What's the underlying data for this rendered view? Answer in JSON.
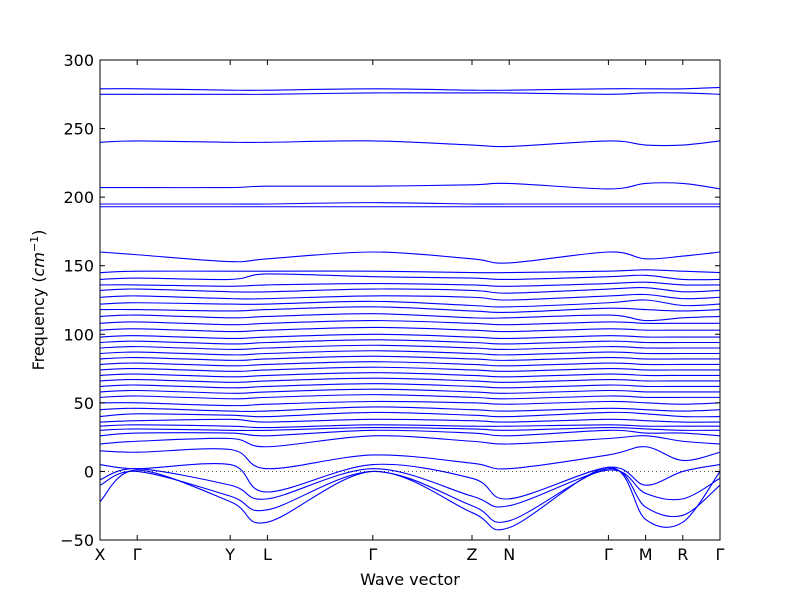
{
  "chart_data": {
    "type": "line",
    "title": "",
    "xlabel": "Wave vector",
    "ylabel": "Frequency ($cm^{-1}$)",
    "ylim": [
      -50,
      300
    ],
    "yticks": [
      -50,
      0,
      50,
      100,
      150,
      200,
      250,
      300
    ],
    "grid": false,
    "legend": "none",
    "line_color": "#0000ff",
    "zero_reference_line": {
      "y": 0,
      "style": "dotted"
    },
    "x": [
      0,
      0.06,
      0.21,
      0.27,
      0.44,
      0.6,
      0.66,
      0.82,
      0.88,
      0.94,
      1.0
    ],
    "x_tick_labels": [
      "X",
      "Γ",
      "Y",
      "L",
      "Γ",
      "Z",
      "N",
      "Γ",
      "M",
      "R",
      "Γ"
    ],
    "series": [
      {
        "values": [
          -22,
          1,
          -22,
          -37,
          0,
          -30,
          -41,
          3,
          -35,
          -37,
          0
        ]
      },
      {
        "values": [
          -10,
          0,
          -18,
          -28,
          0,
          -25,
          -36,
          2,
          -26,
          -32,
          -10
        ]
      },
      {
        "values": [
          -6,
          2,
          -10,
          -20,
          2,
          -18,
          -25,
          1,
          -16,
          -20,
          -5
        ]
      },
      {
        "values": [
          5,
          2,
          5,
          -15,
          5,
          -5,
          -20,
          3,
          -10,
          0,
          5
        ]
      },
      {
        "values": [
          15,
          14,
          16,
          2,
          12,
          6,
          2,
          12,
          18,
          8,
          14
        ]
      },
      {
        "values": [
          20,
          22,
          24,
          18,
          26,
          22,
          20,
          24,
          26,
          22,
          20
        ]
      },
      {
        "values": [
          26,
          28,
          28,
          26,
          30,
          28,
          26,
          30,
          28,
          28,
          26
        ]
      },
      {
        "values": [
          30,
          31,
          30,
          30,
          32,
          31,
          30,
          32,
          31,
          30,
          30
        ]
      },
      {
        "values": [
          33,
          34,
          33,
          32,
          34,
          33,
          33,
          34,
          33,
          33,
          33
        ]
      },
      {
        "values": [
          36,
          37,
          38,
          36,
          38,
          37,
          36,
          38,
          37,
          36,
          36
        ]
      },
      {
        "values": [
          40,
          42,
          41,
          40,
          43,
          41,
          40,
          43,
          42,
          40,
          40
        ]
      },
      {
        "values": [
          45,
          46,
          44,
          44,
          47,
          45,
          44,
          46,
          45,
          44,
          45
        ]
      },
      {
        "values": [
          50,
          50,
          48,
          49,
          51,
          50,
          49,
          51,
          50,
          49,
          50
        ]
      },
      {
        "values": [
          54,
          55,
          53,
          54,
          56,
          54,
          53,
          55,
          54,
          54,
          54
        ]
      },
      {
        "values": [
          58,
          59,
          57,
          58,
          60,
          58,
          57,
          59,
          58,
          58,
          58
        ]
      },
      {
        "values": [
          62,
          63,
          61,
          62,
          64,
          62,
          61,
          63,
          62,
          62,
          62
        ]
      },
      {
        "values": [
          66,
          67,
          65,
          66,
          68,
          66,
          65,
          67,
          66,
          66,
          66
        ]
      },
      {
        "values": [
          70,
          71,
          69,
          70,
          72,
          70,
          69,
          71,
          70,
          70,
          70
        ]
      },
      {
        "values": [
          74,
          75,
          73,
          74,
          76,
          74,
          73,
          75,
          74,
          74,
          74
        ]
      },
      {
        "values": [
          78,
          79,
          77,
          78,
          80,
          78,
          77,
          79,
          78,
          78,
          78
        ]
      },
      {
        "values": [
          82,
          83,
          81,
          82,
          84,
          82,
          81,
          83,
          82,
          82,
          82
        ]
      },
      {
        "values": [
          86,
          87,
          85,
          86,
          88,
          86,
          85,
          87,
          86,
          86,
          86
        ]
      },
      {
        "values": [
          90,
          91,
          89,
          90,
          92,
          90,
          89,
          91,
          90,
          90,
          90
        ]
      },
      {
        "values": [
          94,
          95,
          93,
          94,
          96,
          94,
          93,
          95,
          94,
          94,
          94
        ]
      },
      {
        "values": [
          98,
          99,
          97,
          98,
          100,
          98,
          97,
          99,
          98,
          98,
          98
        ]
      },
      {
        "values": [
          103,
          104,
          102,
          103,
          105,
          103,
          102,
          104,
          103,
          103,
          103
        ]
      },
      {
        "values": [
          108,
          109,
          107,
          108,
          110,
          108,
          107,
          109,
          108,
          108,
          108
        ]
      },
      {
        "values": [
          113,
          114,
          112,
          113,
          115,
          112,
          112,
          114,
          110,
          112,
          113
        ]
      },
      {
        "values": [
          118,
          118,
          117,
          118,
          120,
          117,
          116,
          119,
          118,
          117,
          118
        ]
      },
      {
        "values": [
          122,
          123,
          122,
          122,
          124,
          121,
          120,
          123,
          125,
          121,
          122
        ]
      },
      {
        "values": [
          127,
          128,
          126,
          126,
          128,
          127,
          125,
          128,
          129,
          126,
          127
        ]
      },
      {
        "values": [
          132,
          133,
          131,
          131,
          133,
          132,
          130,
          133,
          134,
          131,
          132
        ]
      },
      {
        "values": [
          136,
          136,
          135,
          136,
          137,
          136,
          135,
          137,
          138,
          136,
          136
        ]
      },
      {
        "values": [
          140,
          141,
          140,
          144,
          142,
          141,
          140,
          142,
          143,
          140,
          140
        ]
      },
      {
        "values": [
          145,
          146,
          146,
          146,
          146,
          145,
          145,
          146,
          147,
          146,
          145
        ]
      },
      {
        "values": [
          160,
          158,
          153,
          155,
          160,
          155,
          152,
          160,
          155,
          157,
          160
        ]
      },
      {
        "values": [
          193,
          193,
          193,
          193,
          193,
          193,
          193,
          193,
          193,
          193,
          193
        ]
      },
      {
        "values": [
          195,
          195,
          195,
          195,
          196,
          195,
          195,
          195,
          195,
          195,
          195
        ]
      },
      {
        "values": [
          207,
          207,
          207,
          208,
          208,
          209,
          210,
          206,
          210,
          210,
          206
        ]
      },
      {
        "values": [
          240,
          241,
          240,
          240,
          241,
          238,
          237,
          241,
          238,
          238,
          241
        ]
      },
      {
        "values": [
          275,
          275,
          275,
          275,
          276,
          276,
          276,
          275,
          276,
          276,
          275
        ]
      },
      {
        "values": [
          279,
          279,
          278,
          278,
          279,
          278,
          278,
          279,
          279,
          279,
          280
        ]
      }
    ]
  }
}
